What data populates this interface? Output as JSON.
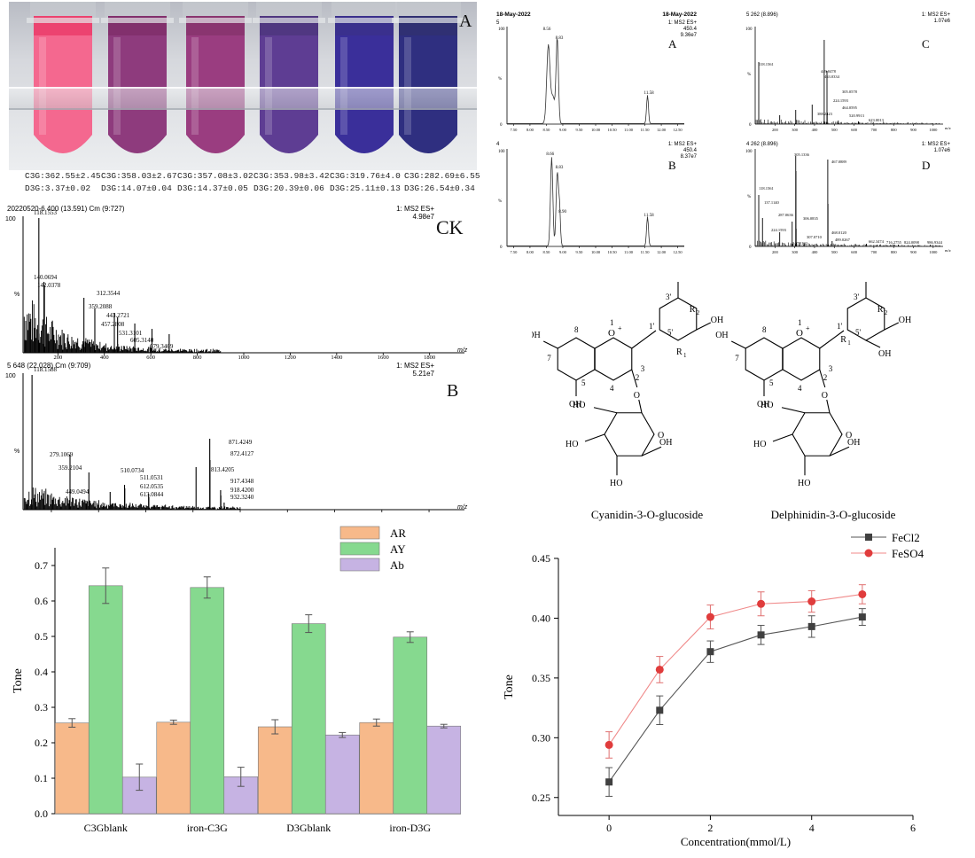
{
  "panel_a": {
    "label": "A",
    "tubes": [
      {
        "color": "#f4688f",
        "top": "#f03465",
        "c3g": "C3G:362.55±2.45",
        "d3g": "D3G:3.37±0.02"
      },
      {
        "color": "#8e3b7d",
        "top": "#7a1f62",
        "c3g": "C3G:358.03±2.67",
        "d3g": "D3G:14.07±0.04"
      },
      {
        "color": "#9a3d80",
        "top": "#832565",
        "c3g": "C3G:357.08±3.02",
        "d3g": "D3G:14.37±0.05"
      },
      {
        "color": "#5e3d93",
        "top": "#432778",
        "c3g": "C3G:353.98±3.42",
        "d3g": "D3G:20.39±0.06"
      },
      {
        "color": "#3a2f9a",
        "top": "#2a1f85",
        "c3g": "C3G:319.76±4.0",
        "d3g": "D3G:25.11±0.13"
      },
      {
        "color": "#2f2f80",
        "top": "#1f1f68",
        "c3g": "C3G:282.69±6.55",
        "d3g": "D3G:26.54±0.34"
      }
    ]
  },
  "spectrum_ck": {
    "label": "CK",
    "header_left": "20220520-6 400 (13.591) Cm (9:727)",
    "header_right_1": "1: MS2 ES+",
    "header_right_2": "4.98e7",
    "y_top": "100",
    "y_zero": "%",
    "x_label": "m/z",
    "x_ticks": [
      "200",
      "400",
      "600",
      "800",
      "1000",
      "1200",
      "1400",
      "1600",
      "1800"
    ],
    "peak_labels": [
      "118.1553",
      "140.0694",
      "142.0378",
      "312.3544",
      "359.2088",
      "443.2721",
      "457.2808",
      "531.3101",
      "605.3140",
      "679.3469"
    ]
  },
  "spectrum_b": {
    "label": "B",
    "header_left": "5 648 (22.028) Cm (9:709)",
    "header_right_1": "1: MS2 ES+",
    "header_right_2": "5.21e7",
    "y_top": "100",
    "y_zero": "%",
    "x_label": "m/z",
    "peak_labels": [
      "118.1588",
      "279.1069",
      "359.2104",
      "449.0494",
      "510.0734",
      "511.0531",
      "612.0535",
      "613.0844",
      "813.4205",
      "871.4249",
      "872.4127",
      "917.4348",
      "918.4200",
      "932.3240"
    ]
  },
  "chrom": {
    "date_left": "18-May-2022",
    "date_right": "18-May-2022",
    "a": {
      "label": "A",
      "id": "5",
      "ms": "1: MS2 ES+",
      "mass": "450.4",
      "intensity": "9.36e7",
      "peaks": [
        "8.56",
        "8.83",
        "11.58"
      ]
    },
    "b": {
      "label": "B",
      "id": "4",
      "ms": "1: MS2 ES+",
      "mass": "450.4",
      "intensity": "8.37e7",
      "peaks": [
        "8.66",
        "8.83",
        "8.90",
        "11.58"
      ]
    },
    "x_ticks": [
      "7.50",
      "8.00",
      "8.50",
      "9.00",
      "9.50",
      "10.00",
      "10.50",
      "11.00",
      "11.50",
      "12.00",
      "12.50"
    ]
  },
  "ms_c": {
    "label": "C",
    "header": "5 262 (8.896)",
    "ms": "1: MS2 ES+",
    "intensity": "1.07e6",
    "peaks": [
      "118.1561",
      "449.0478",
      "463.0334",
      "305.0578",
      "388.2423",
      "224.1593",
      "464.0595",
      "520.9913",
      "623.0013"
    ],
    "x_ticks": [
      "200",
      "300",
      "400",
      "500",
      "600",
      "700",
      "800",
      "900",
      "1000"
    ],
    "x_label": "m/z"
  },
  "ms_d": {
    "label": "D",
    "header": "4 262 (8.896)",
    "ms": "1: MS2 ES+",
    "intensity": "1.07e6",
    "peaks": [
      "118.1561",
      "305.1336",
      "467.0889",
      "137.1140",
      "306.0835",
      "287.0636",
      "468.0120",
      "224.1593",
      "307.0710",
      "347.0102",
      "489.0267",
      "662.3474",
      "716.2755",
      "824.0098",
      "986.9344"
    ],
    "x_ticks": [
      "200",
      "300",
      "400",
      "500",
      "600",
      "700",
      "800",
      "900",
      "1000"
    ],
    "x_label": "m/z"
  },
  "structures": {
    "left_name": "Cyanidin-3-O-glucoside",
    "right_name": "Delphinidin-3-O-glucoside"
  },
  "chart_data": [
    {
      "type": "bar",
      "categories": [
        "C3Gblank",
        "iron-C3G",
        "D3Gblank",
        "iron-D3G"
      ],
      "series": [
        {
          "name": "AR",
          "color": "#f7b98a",
          "values": [
            0.256,
            0.258,
            0.245,
            0.257
          ],
          "errors": [
            0.012,
            0.006,
            0.02,
            0.01
          ]
        },
        {
          "name": "AY",
          "color": "#86d98f",
          "values": [
            0.643,
            0.638,
            0.536,
            0.498
          ],
          "errors": [
            0.05,
            0.03,
            0.025,
            0.015
          ]
        },
        {
          "name": "Ab",
          "color": "#c6b3e3",
          "values": [
            0.103,
            0.104,
            0.222,
            0.247
          ],
          "errors": [
            0.037,
            0.027,
            0.007,
            0.005
          ]
        }
      ],
      "ylabel": "Tone",
      "ylim": [
        0.0,
        0.75
      ],
      "yticks": [
        "0.0",
        "0.1",
        "0.2",
        "0.3",
        "0.4",
        "0.5",
        "0.6",
        "0.7"
      ],
      "legend": "top"
    },
    {
      "type": "line",
      "x": [
        0,
        1,
        2,
        3,
        4,
        5
      ],
      "series": [
        {
          "name": "FeCl2",
          "color": "#404040",
          "values": [
            0.263,
            0.323,
            0.372,
            0.386,
            0.393,
            0.401
          ],
          "errors": [
            0.012,
            0.012,
            0.009,
            0.008,
            0.009,
            0.007
          ]
        },
        {
          "name": "FeSO4",
          "color": "#e03c3c",
          "values": [
            0.294,
            0.357,
            0.401,
            0.412,
            0.414,
            0.42
          ],
          "errors": [
            0.011,
            0.011,
            0.01,
            0.01,
            0.009,
            0.008
          ]
        }
      ],
      "xlabel": "Concentration(mmol/L)",
      "ylabel": "Tone",
      "xlim": [
        -1,
        6
      ],
      "ylim": [
        0.235,
        0.45
      ],
      "xticks": [
        "0",
        "2",
        "4",
        "6"
      ],
      "yticks": [
        "0.25",
        "0.30",
        "0.35",
        "0.40",
        "0.45"
      ],
      "legend": "top-right"
    }
  ]
}
